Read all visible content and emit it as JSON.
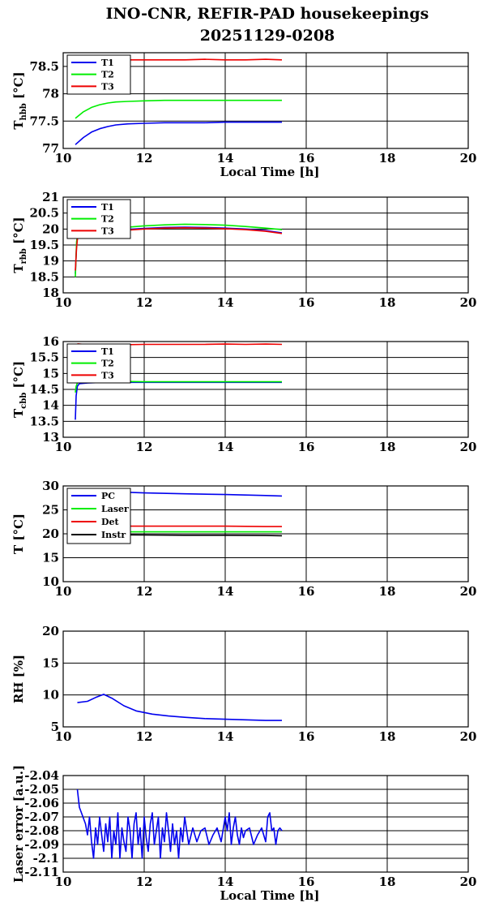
{
  "title": {
    "line1": "INO-CNR, REFIR-PAD housekeepings",
    "line2": "20251129-0208"
  },
  "colors": {
    "blue": "#0000ee",
    "green": "#00ee00",
    "red": "#ee0000",
    "black": "#000000"
  },
  "chart_data": [
    {
      "type": "line",
      "ylabel": "T",
      "ylabel_sub": "hbb",
      "ylabel_unit": "[°C]",
      "xlabel": "Local Time [h]",
      "xlim": [
        10,
        20
      ],
      "ylim": [
        77,
        78.75
      ],
      "yticks": [
        "77",
        "77.5",
        "78",
        "78.5"
      ],
      "ytick_values": [
        77,
        77.5,
        78,
        78.5
      ],
      "xticks": [
        "10",
        "12",
        "14",
        "16",
        "18",
        "20"
      ],
      "grid": true,
      "legend": "top-left",
      "series": [
        {
          "name": "T1",
          "color": "blue",
          "x": [
            10.3,
            10.5,
            10.7,
            10.9,
            11.1,
            11.3,
            11.6,
            12,
            12.5,
            13,
            13.5,
            14,
            14.5,
            15,
            15.4
          ],
          "values": [
            77.07,
            77.2,
            77.3,
            77.36,
            77.4,
            77.43,
            77.45,
            77.46,
            77.47,
            77.47,
            77.47,
            77.48,
            77.48,
            77.48,
            77.48
          ]
        },
        {
          "name": "T2",
          "color": "green",
          "x": [
            10.3,
            10.5,
            10.7,
            10.9,
            11.1,
            11.3,
            11.6,
            12,
            12.5,
            13,
            13.5,
            14,
            14.5,
            15,
            15.4
          ],
          "values": [
            77.55,
            77.67,
            77.75,
            77.8,
            77.83,
            77.85,
            77.86,
            77.87,
            77.88,
            77.88,
            77.88,
            77.88,
            77.88,
            77.88,
            77.88
          ]
        },
        {
          "name": "T3",
          "color": "red",
          "x": [
            10.3,
            10.5,
            10.8,
            11.2,
            11.6,
            12,
            12.5,
            13,
            13.5,
            14,
            14.5,
            15,
            15.4
          ],
          "values": [
            78.6,
            78.6,
            78.61,
            78.62,
            78.62,
            78.62,
            78.62,
            78.62,
            78.63,
            78.62,
            78.62,
            78.63,
            78.62
          ]
        }
      ]
    },
    {
      "type": "line",
      "ylabel": "T",
      "ylabel_sub": "rbb",
      "ylabel_unit": "[°C]",
      "xlabel": "",
      "xlim": [
        10,
        20
      ],
      "ylim": [
        18,
        21
      ],
      "yticks": [
        "18",
        "18.5",
        "19",
        "19.5",
        "20",
        "20.5",
        "21"
      ],
      "ytick_values": [
        18,
        18.5,
        19,
        19.5,
        20,
        20.5,
        21
      ],
      "xticks": [
        "10",
        "12",
        "14",
        "16",
        "18",
        "20"
      ],
      "grid": true,
      "legend": "top-left",
      "series": [
        {
          "name": "T1",
          "color": "blue",
          "x": [
            10.3,
            10.33,
            10.36,
            10.4,
            10.6,
            11,
            11.5,
            12,
            12.5,
            13,
            13.5,
            14,
            14.5,
            15,
            15.4
          ],
          "values": [
            18.6,
            19.5,
            19.8,
            19.9,
            19.93,
            19.95,
            19.98,
            20.02,
            20.05,
            20.06,
            20.05,
            20.03,
            20,
            19.95,
            19.88
          ]
        },
        {
          "name": "T2",
          "color": "green",
          "x": [
            10.3,
            10.33,
            10.36,
            10.4,
            10.6,
            11,
            11.5,
            12,
            12.5,
            13,
            13.5,
            14,
            14.5,
            15,
            15.4
          ],
          "values": [
            18.5,
            19.6,
            19.9,
            19.97,
            20,
            20.02,
            20.05,
            20.1,
            20.13,
            20.15,
            20.14,
            20.12,
            20.08,
            20.03,
            19.98
          ]
        },
        {
          "name": "T3",
          "color": "red",
          "x": [
            10.3,
            10.33,
            10.36,
            10.4,
            10.6,
            11,
            11.5,
            12,
            12.5,
            13,
            13.5,
            14,
            14.5,
            15,
            15.4
          ],
          "values": [
            18.7,
            19.4,
            19.8,
            19.88,
            19.92,
            19.94,
            19.96,
            20,
            20.03,
            20.04,
            20.03,
            20.01,
            19.98,
            19.93,
            19.86
          ]
        }
      ]
    },
    {
      "type": "line",
      "ylabel": "T",
      "ylabel_sub": "cbb",
      "ylabel_unit": "[°C]",
      "xlabel": "",
      "xlim": [
        10,
        20
      ],
      "ylim": [
        13,
        16
      ],
      "yticks": [
        "13",
        "13.5",
        "14",
        "14.5",
        "15",
        "15.5",
        "16"
      ],
      "ytick_values": [
        13,
        13.5,
        14,
        14.5,
        15,
        15.5,
        16
      ],
      "xticks": [
        "10",
        "12",
        "14",
        "16",
        "18",
        "20"
      ],
      "grid": true,
      "legend": "top-left",
      "series": [
        {
          "name": "T1",
          "color": "blue",
          "x": [
            10.3,
            10.32,
            10.35,
            10.4,
            10.6,
            11,
            11.5,
            12,
            12.5,
            13,
            13.5,
            14,
            14.5,
            15,
            15.4
          ],
          "values": [
            13.55,
            14.3,
            14.6,
            14.68,
            14.7,
            14.72,
            14.72,
            14.72,
            14.72,
            14.72,
            14.72,
            14.72,
            14.72,
            14.72,
            14.72
          ]
        },
        {
          "name": "T2",
          "color": "green",
          "x": [
            10.3,
            10.32,
            10.35,
            10.4,
            10.6,
            11,
            11.5,
            12,
            12.5,
            13,
            13.5,
            14,
            14.5,
            15,
            15.4
          ],
          "values": [
            14.4,
            14.6,
            14.7,
            14.73,
            14.74,
            14.75,
            14.75,
            14.74,
            14.74,
            14.74,
            14.74,
            14.74,
            14.74,
            14.74,
            14.74
          ]
        },
        {
          "name": "T3",
          "color": "red",
          "x": [
            10.35,
            10.6,
            11,
            11.5,
            12,
            12.5,
            13,
            13.5,
            14,
            14.5,
            15,
            15.4
          ],
          "values": [
            15.93,
            15.9,
            15.9,
            15.9,
            15.91,
            15.91,
            15.91,
            15.91,
            15.92,
            15.91,
            15.92,
            15.91
          ]
        }
      ]
    },
    {
      "type": "line",
      "ylabel": "T [°C]",
      "xlabel": "",
      "xlim": [
        10,
        20
      ],
      "ylim": [
        10,
        30
      ],
      "yticks": [
        "10",
        "15",
        "20",
        "25",
        "30"
      ],
      "ytick_values": [
        10,
        15,
        20,
        25,
        30
      ],
      "xticks": [
        "10",
        "12",
        "14",
        "16",
        "18",
        "20"
      ],
      "grid": true,
      "legend": "top-left",
      "series": [
        {
          "name": "PC",
          "color": "blue",
          "x": [
            10.3,
            11,
            11.5,
            12,
            13,
            14,
            15,
            15.4
          ],
          "values": [
            28.8,
            28.75,
            28.7,
            28.55,
            28.35,
            28.2,
            28.0,
            27.9
          ]
        },
        {
          "name": "Laser",
          "color": "green",
          "x": [
            10.3,
            11,
            12,
            13,
            14,
            15,
            15.4
          ],
          "values": [
            20.3,
            20.4,
            20.4,
            20.4,
            20.4,
            20.4,
            20.4
          ]
        },
        {
          "name": "Det",
          "color": "red",
          "x": [
            10.3,
            11,
            12,
            13,
            14,
            15,
            15.4
          ],
          "values": [
            21.5,
            21.6,
            21.6,
            21.6,
            21.6,
            21.5,
            21.5
          ]
        },
        {
          "name": "Instr",
          "color": "black",
          "x": [
            10.3,
            11,
            12,
            13,
            14,
            15,
            15.4
          ],
          "values": [
            19.8,
            19.8,
            19.75,
            19.7,
            19.7,
            19.65,
            19.6
          ]
        }
      ]
    },
    {
      "type": "line",
      "ylabel": "RH [%]",
      "xlabel": "",
      "xlim": [
        10,
        20
      ],
      "ylim": [
        5,
        20
      ],
      "yticks": [
        "5",
        "10",
        "15",
        "20"
      ],
      "ytick_values": [
        5,
        10,
        15,
        20
      ],
      "xticks": [
        "10",
        "12",
        "14",
        "16",
        "18",
        "20"
      ],
      "grid": true,
      "series": [
        {
          "color": "blue",
          "x": [
            10.35,
            10.6,
            10.8,
            11.0,
            11.2,
            11.5,
            11.8,
            12.2,
            12.6,
            13.0,
            13.5,
            14.0,
            14.5,
            15.0,
            15.4
          ],
          "values": [
            8.8,
            9.0,
            9.6,
            10.1,
            9.5,
            8.3,
            7.5,
            7.0,
            6.7,
            6.5,
            6.3,
            6.2,
            6.1,
            6.0,
            6.0
          ]
        }
      ]
    },
    {
      "type": "line",
      "ylabel": "Laser error [a.u.]",
      "xlabel": "Local Time [h]",
      "xlim": [
        10,
        20
      ],
      "ylim": [
        -2.11,
        -2.04
      ],
      "yticks": [
        "-2.11",
        "-2.1",
        "-2.09",
        "-2.08",
        "-2.07",
        "-2.06",
        "-2.05",
        "-2.04"
      ],
      "ytick_values": [
        -2.11,
        -2.1,
        -2.09,
        -2.08,
        -2.07,
        -2.06,
        -2.05,
        -2.04
      ],
      "xticks": [
        "10",
        "12",
        "14",
        "16",
        "18",
        "20"
      ],
      "grid": true,
      "series": [
        {
          "color": "blue",
          "x": [
            10.35,
            10.4,
            10.45,
            10.55,
            10.6,
            10.65,
            10.7,
            10.75,
            10.8,
            10.85,
            10.9,
            10.95,
            11.0,
            11.05,
            11.1,
            11.15,
            11.2,
            11.25,
            11.3,
            11.35,
            11.4,
            11.45,
            11.5,
            11.55,
            11.6,
            11.65,
            11.7,
            11.75,
            11.8,
            11.85,
            11.9,
            11.95,
            12.0,
            12.05,
            12.1,
            12.15,
            12.2,
            12.25,
            12.3,
            12.35,
            12.4,
            12.45,
            12.5,
            12.55,
            12.6,
            12.65,
            12.7,
            12.75,
            12.8,
            12.85,
            12.9,
            12.95,
            13.0,
            13.05,
            13.1,
            13.2,
            13.3,
            13.4,
            13.5,
            13.6,
            13.7,
            13.8,
            13.9,
            14.0,
            14.05,
            14.1,
            14.15,
            14.2,
            14.25,
            14.3,
            14.35,
            14.4,
            14.45,
            14.5,
            14.6,
            14.7,
            14.8,
            14.9,
            15.0,
            15.05,
            15.1,
            15.15,
            15.2,
            15.25,
            15.3,
            15.35,
            15.4
          ],
          "values": [
            -2.05,
            -2.063,
            -2.067,
            -2.075,
            -2.083,
            -2.07,
            -2.088,
            -2.1,
            -2.078,
            -2.09,
            -2.07,
            -2.083,
            -2.095,
            -2.075,
            -2.088,
            -2.07,
            -2.1,
            -2.08,
            -2.09,
            -2.067,
            -2.1,
            -2.078,
            -2.088,
            -2.095,
            -2.07,
            -2.08,
            -2.1,
            -2.075,
            -2.067,
            -2.09,
            -2.078,
            -2.1,
            -2.07,
            -2.085,
            -2.095,
            -2.075,
            -2.067,
            -2.09,
            -2.08,
            -2.07,
            -2.1,
            -2.078,
            -2.088,
            -2.067,
            -2.08,
            -2.095,
            -2.075,
            -2.09,
            -2.08,
            -2.1,
            -2.078,
            -2.088,
            -2.07,
            -2.08,
            -2.09,
            -2.078,
            -2.088,
            -2.08,
            -2.078,
            -2.09,
            -2.083,
            -2.078,
            -2.088,
            -2.07,
            -2.08,
            -2.067,
            -2.09,
            -2.078,
            -2.07,
            -2.083,
            -2.09,
            -2.078,
            -2.085,
            -2.08,
            -2.078,
            -2.09,
            -2.083,
            -2.078,
            -2.088,
            -2.07,
            -2.067,
            -2.08,
            -2.078,
            -2.09,
            -2.08,
            -2.078,
            -2.08
          ]
        }
      ]
    }
  ]
}
